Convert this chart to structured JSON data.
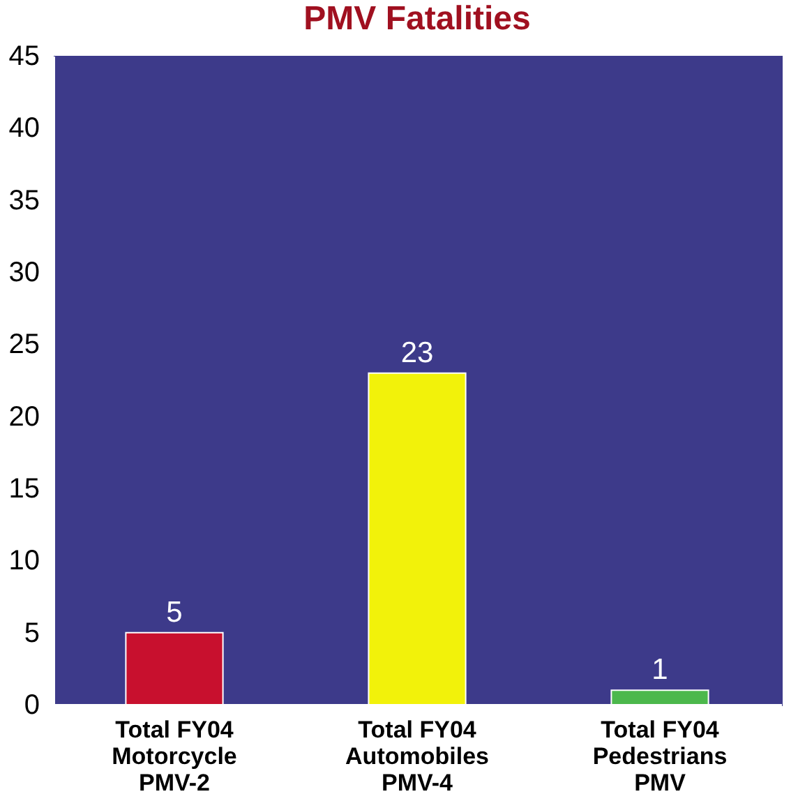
{
  "chart_data": {
    "type": "bar",
    "title": "PMV Fatalities",
    "categories": [
      "Total FY04\nMotorcycle\nPMV-2",
      "Total FY04\nAutomobiles\nPMV-4",
      "Total FY04\nPedestrians\nPMV"
    ],
    "values": [
      5,
      23,
      1
    ],
    "colors": [
      "#c8102e",
      "#f2f20a",
      "#4cb84c"
    ],
    "ylim": [
      0,
      45
    ],
    "yticks": [
      0,
      5,
      10,
      15,
      20,
      25,
      30,
      35,
      40,
      45
    ],
    "data_labels": true,
    "grid": false
  }
}
